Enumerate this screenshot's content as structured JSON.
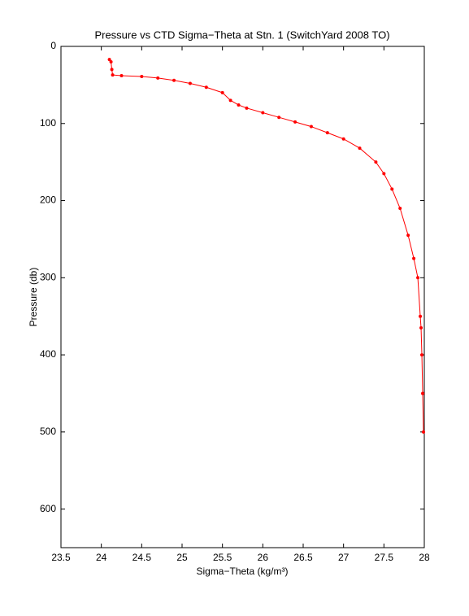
{
  "chart_data": {
    "type": "line",
    "title": "Pressure vs CTD Sigma−Theta at Stn. 1 (SwitchYard 2008 TO)",
    "xlabel": "Sigma−Theta (kg/m³)",
    "ylabel": "Pressure (db)",
    "x": [
      24.1,
      24.12,
      24.13,
      24.14,
      24.25,
      24.5,
      24.7,
      24.9,
      25.1,
      25.3,
      25.5,
      25.6,
      25.7,
      25.8,
      26.0,
      26.2,
      26.4,
      26.6,
      26.8,
      27.0,
      27.2,
      27.4,
      27.5,
      27.6,
      27.7,
      27.8,
      27.87,
      27.92,
      27.95,
      27.96,
      27.97,
      27.98,
      27.99
    ],
    "series": [
      {
        "color": "#ff0000",
        "values": [
          17,
          20,
          30,
          37,
          38,
          39,
          41,
          44,
          48,
          53,
          60,
          70,
          76,
          80,
          86,
          92,
          98,
          104,
          112,
          120,
          132,
          150,
          165,
          185,
          210,
          245,
          275,
          300,
          350,
          365,
          400,
          450,
          500
        ]
      }
    ],
    "xlim": [
      23.5,
      28
    ],
    "xticks": [
      23.5,
      24,
      24.5,
      25,
      25.5,
      26,
      26.5,
      27,
      27.5,
      28
    ],
    "ylim": [
      0,
      650
    ],
    "yticks": [
      0,
      100,
      200,
      300,
      400,
      500,
      600
    ],
    "y_reversed": true,
    "grid": false
  }
}
